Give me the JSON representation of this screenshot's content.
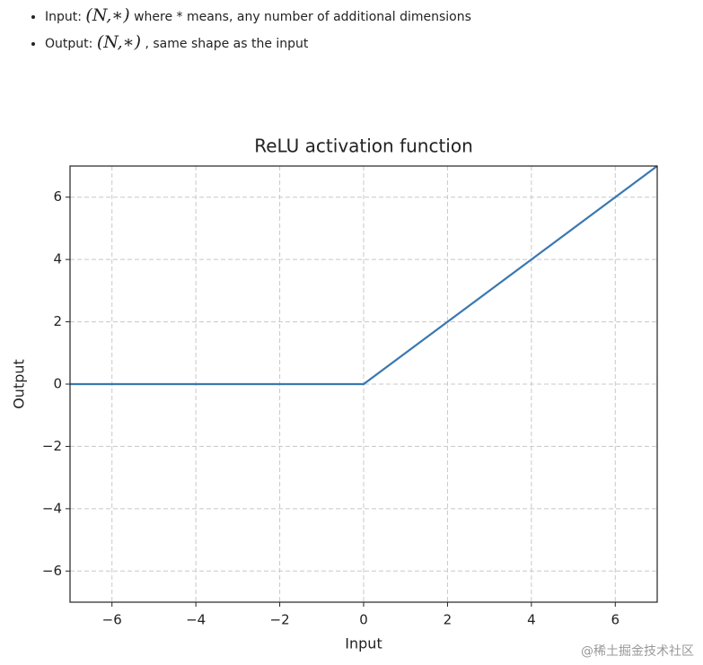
{
  "bullets": [
    {
      "lead": "Input:",
      "math": "(N,∗)",
      "rest": "where * means, any number of additional dimensions"
    },
    {
      "lead": "Output:",
      "math": "(N,∗)",
      "rest": ", same shape as the input"
    }
  ],
  "watermark": "@稀土掘金技术社区",
  "chart_data": {
    "type": "line",
    "title": "ReLU activation function",
    "x_label": "Input",
    "y_label": "Output",
    "x": [
      -7,
      0,
      7
    ],
    "values": [
      0,
      0,
      7
    ],
    "color": "#3a78b0",
    "xlim": [
      -7,
      7
    ],
    "ylim": [
      -7,
      7
    ],
    "xticks": [
      {
        "value": -6,
        "label": "−6"
      },
      {
        "value": -4,
        "label": "−4"
      },
      {
        "value": -2,
        "label": "−2"
      },
      0,
      2,
      4,
      6
    ],
    "yticks": [
      {
        "value": -6,
        "label": "−6"
      },
      {
        "value": -4,
        "label": "−4"
      },
      {
        "value": -2,
        "label": "−2"
      },
      0,
      2,
      4,
      6
    ],
    "grid": true
  }
}
